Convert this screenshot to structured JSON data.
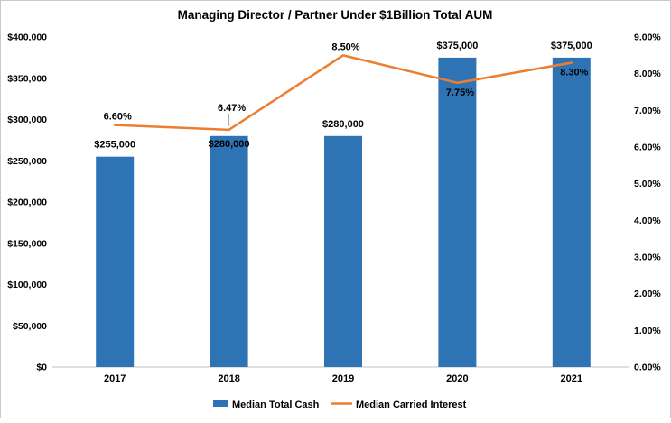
{
  "chart_data": {
    "type": "combo-bar-line",
    "title": "Managing Director / Partner Under $1Billion Total AUM",
    "categories": [
      "2017",
      "2018",
      "2019",
      "2020",
      "2021"
    ],
    "series": [
      {
        "name": "Median Total Cash",
        "type": "bar",
        "color": "#2E74B5",
        "axis": "left",
        "values": [
          255000,
          280000,
          280000,
          375000,
          375000
        ],
        "labels": [
          "$255,000",
          "$280,000",
          "$280,000",
          "$375,000",
          "$375,000"
        ],
        "label_placement": [
          "above",
          "inside-top",
          "above",
          "above",
          "above"
        ]
      },
      {
        "name": "Median Carried Interest",
        "type": "line",
        "color": "#ED7D31",
        "axis": "right",
        "values": [
          6.6,
          6.47,
          8.5,
          7.75,
          8.3
        ],
        "labels": [
          "6.60%",
          "6.47%",
          "8.50%",
          "7.75%",
          "8.30%"
        ],
        "label_placement": [
          "above",
          "above-leader",
          "above",
          "below",
          "below"
        ]
      }
    ],
    "left_axis": {
      "min": 0,
      "max": 400000,
      "ticks": [
        "$0",
        "$50,000",
        "$100,000",
        "$150,000",
        "$200,000",
        "$250,000",
        "$300,000",
        "$350,000",
        "$400,000"
      ]
    },
    "right_axis": {
      "min": 0,
      "max": 9,
      "ticks": [
        "0.00%",
        "1.00%",
        "2.00%",
        "3.00%",
        "4.00%",
        "5.00%",
        "6.00%",
        "7.00%",
        "8.00%",
        "9.00%"
      ]
    },
    "legend_position": "bottom",
    "gridlines": false,
    "colors": {
      "bar": "#2E74B5",
      "line": "#ED7D31",
      "axis_line": "#d6d6d6",
      "leader_line": "#a6a6a6",
      "text": "#000000"
    }
  }
}
